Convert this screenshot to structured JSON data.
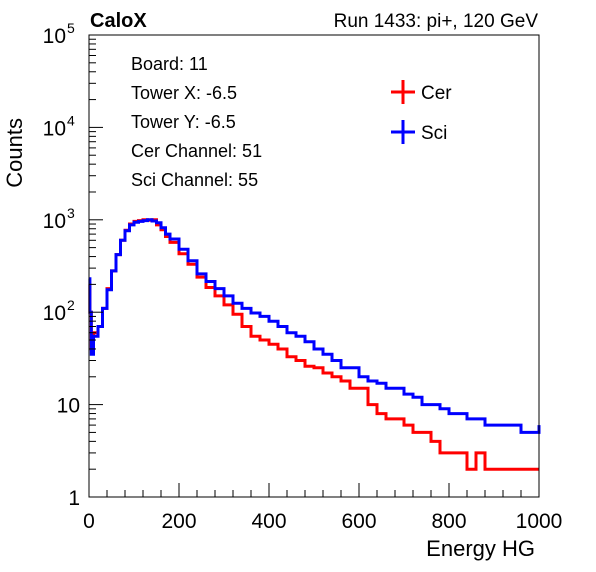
{
  "chart_data": {
    "type": "line",
    "title_left": "CaloX",
    "title_right": "Run 1433: pi+, 120 GeV",
    "xlabel": "Energy HG",
    "ylabel": "Counts",
    "xlim": [
      0,
      1000
    ],
    "ylim": [
      1,
      100000
    ],
    "log_y": true,
    "grid": false,
    "x_ticks": [
      0,
      200,
      400,
      600,
      800,
      1000
    ],
    "y_ticks": [
      {
        "value": 1,
        "label": "1"
      },
      {
        "value": 10,
        "label": "10"
      },
      {
        "value": 100,
        "label": "10",
        "exp": "2"
      },
      {
        "value": 1000,
        "label": "10",
        "exp": "3"
      },
      {
        "value": 10000,
        "label": "10",
        "exp": "4"
      },
      {
        "value": 100000,
        "label": "10",
        "exp": "5"
      }
    ],
    "info_box": [
      "Board: 11",
      "Tower X: -6.5",
      "Tower Y: -6.5",
      "Cer Channel: 51",
      "Sci Channel: 55"
    ],
    "legend_position": "top-right",
    "series": [
      {
        "name": "Cer",
        "color": "#ff0000",
        "x": [
          0,
          2,
          5,
          10,
          20,
          30,
          40,
          50,
          60,
          70,
          80,
          90,
          100,
          110,
          120,
          130,
          140,
          150,
          160,
          170,
          180,
          200,
          220,
          240,
          260,
          280,
          300,
          320,
          340,
          360,
          380,
          400,
          420,
          440,
          460,
          480,
          500,
          520,
          540,
          560,
          580,
          600,
          620,
          640,
          660,
          680,
          700,
          720,
          740,
          760,
          780,
          800,
          820,
          840,
          860,
          880,
          900,
          920,
          940,
          960,
          980,
          1000
        ],
        "y": [
          200,
          100,
          40,
          60,
          70,
          110,
          180,
          280,
          420,
          600,
          770,
          900,
          960,
          980,
          1000,
          990,
          1000,
          880,
          780,
          660,
          570,
          430,
          330,
          240,
          185,
          150,
          120,
          95,
          70,
          55,
          50,
          45,
          40,
          33,
          30,
          26,
          25,
          22,
          20,
          18,
          15,
          15,
          10,
          8,
          7,
          7,
          6,
          5,
          5,
          4,
          3,
          3,
          3,
          2,
          3,
          2,
          2,
          2,
          2,
          2,
          2,
          2
        ]
      },
      {
        "name": "Sci",
        "color": "#0000ff",
        "x": [
          0,
          2,
          5,
          10,
          20,
          30,
          40,
          50,
          60,
          70,
          80,
          90,
          100,
          110,
          120,
          130,
          140,
          150,
          160,
          170,
          180,
          200,
          220,
          240,
          260,
          280,
          300,
          320,
          340,
          360,
          380,
          400,
          420,
          440,
          460,
          480,
          500,
          520,
          540,
          560,
          580,
          600,
          620,
          640,
          660,
          680,
          700,
          720,
          740,
          760,
          780,
          800,
          820,
          840,
          860,
          880,
          900,
          920,
          940,
          960,
          980,
          1000
        ],
        "y": [
          230,
          100,
          35,
          55,
          70,
          110,
          175,
          280,
          420,
          600,
          760,
          880,
          940,
          960,
          980,
          1000,
          970,
          930,
          820,
          700,
          620,
          480,
          360,
          260,
          215,
          180,
          150,
          125,
          110,
          98,
          90,
          80,
          70,
          60,
          55,
          48,
          40,
          35,
          30,
          25,
          25,
          20,
          18,
          17,
          15,
          15,
          13,
          12,
          10,
          10,
          9,
          8,
          8,
          7,
          7,
          6,
          6,
          6,
          6,
          5,
          5,
          6
        ]
      }
    ]
  }
}
